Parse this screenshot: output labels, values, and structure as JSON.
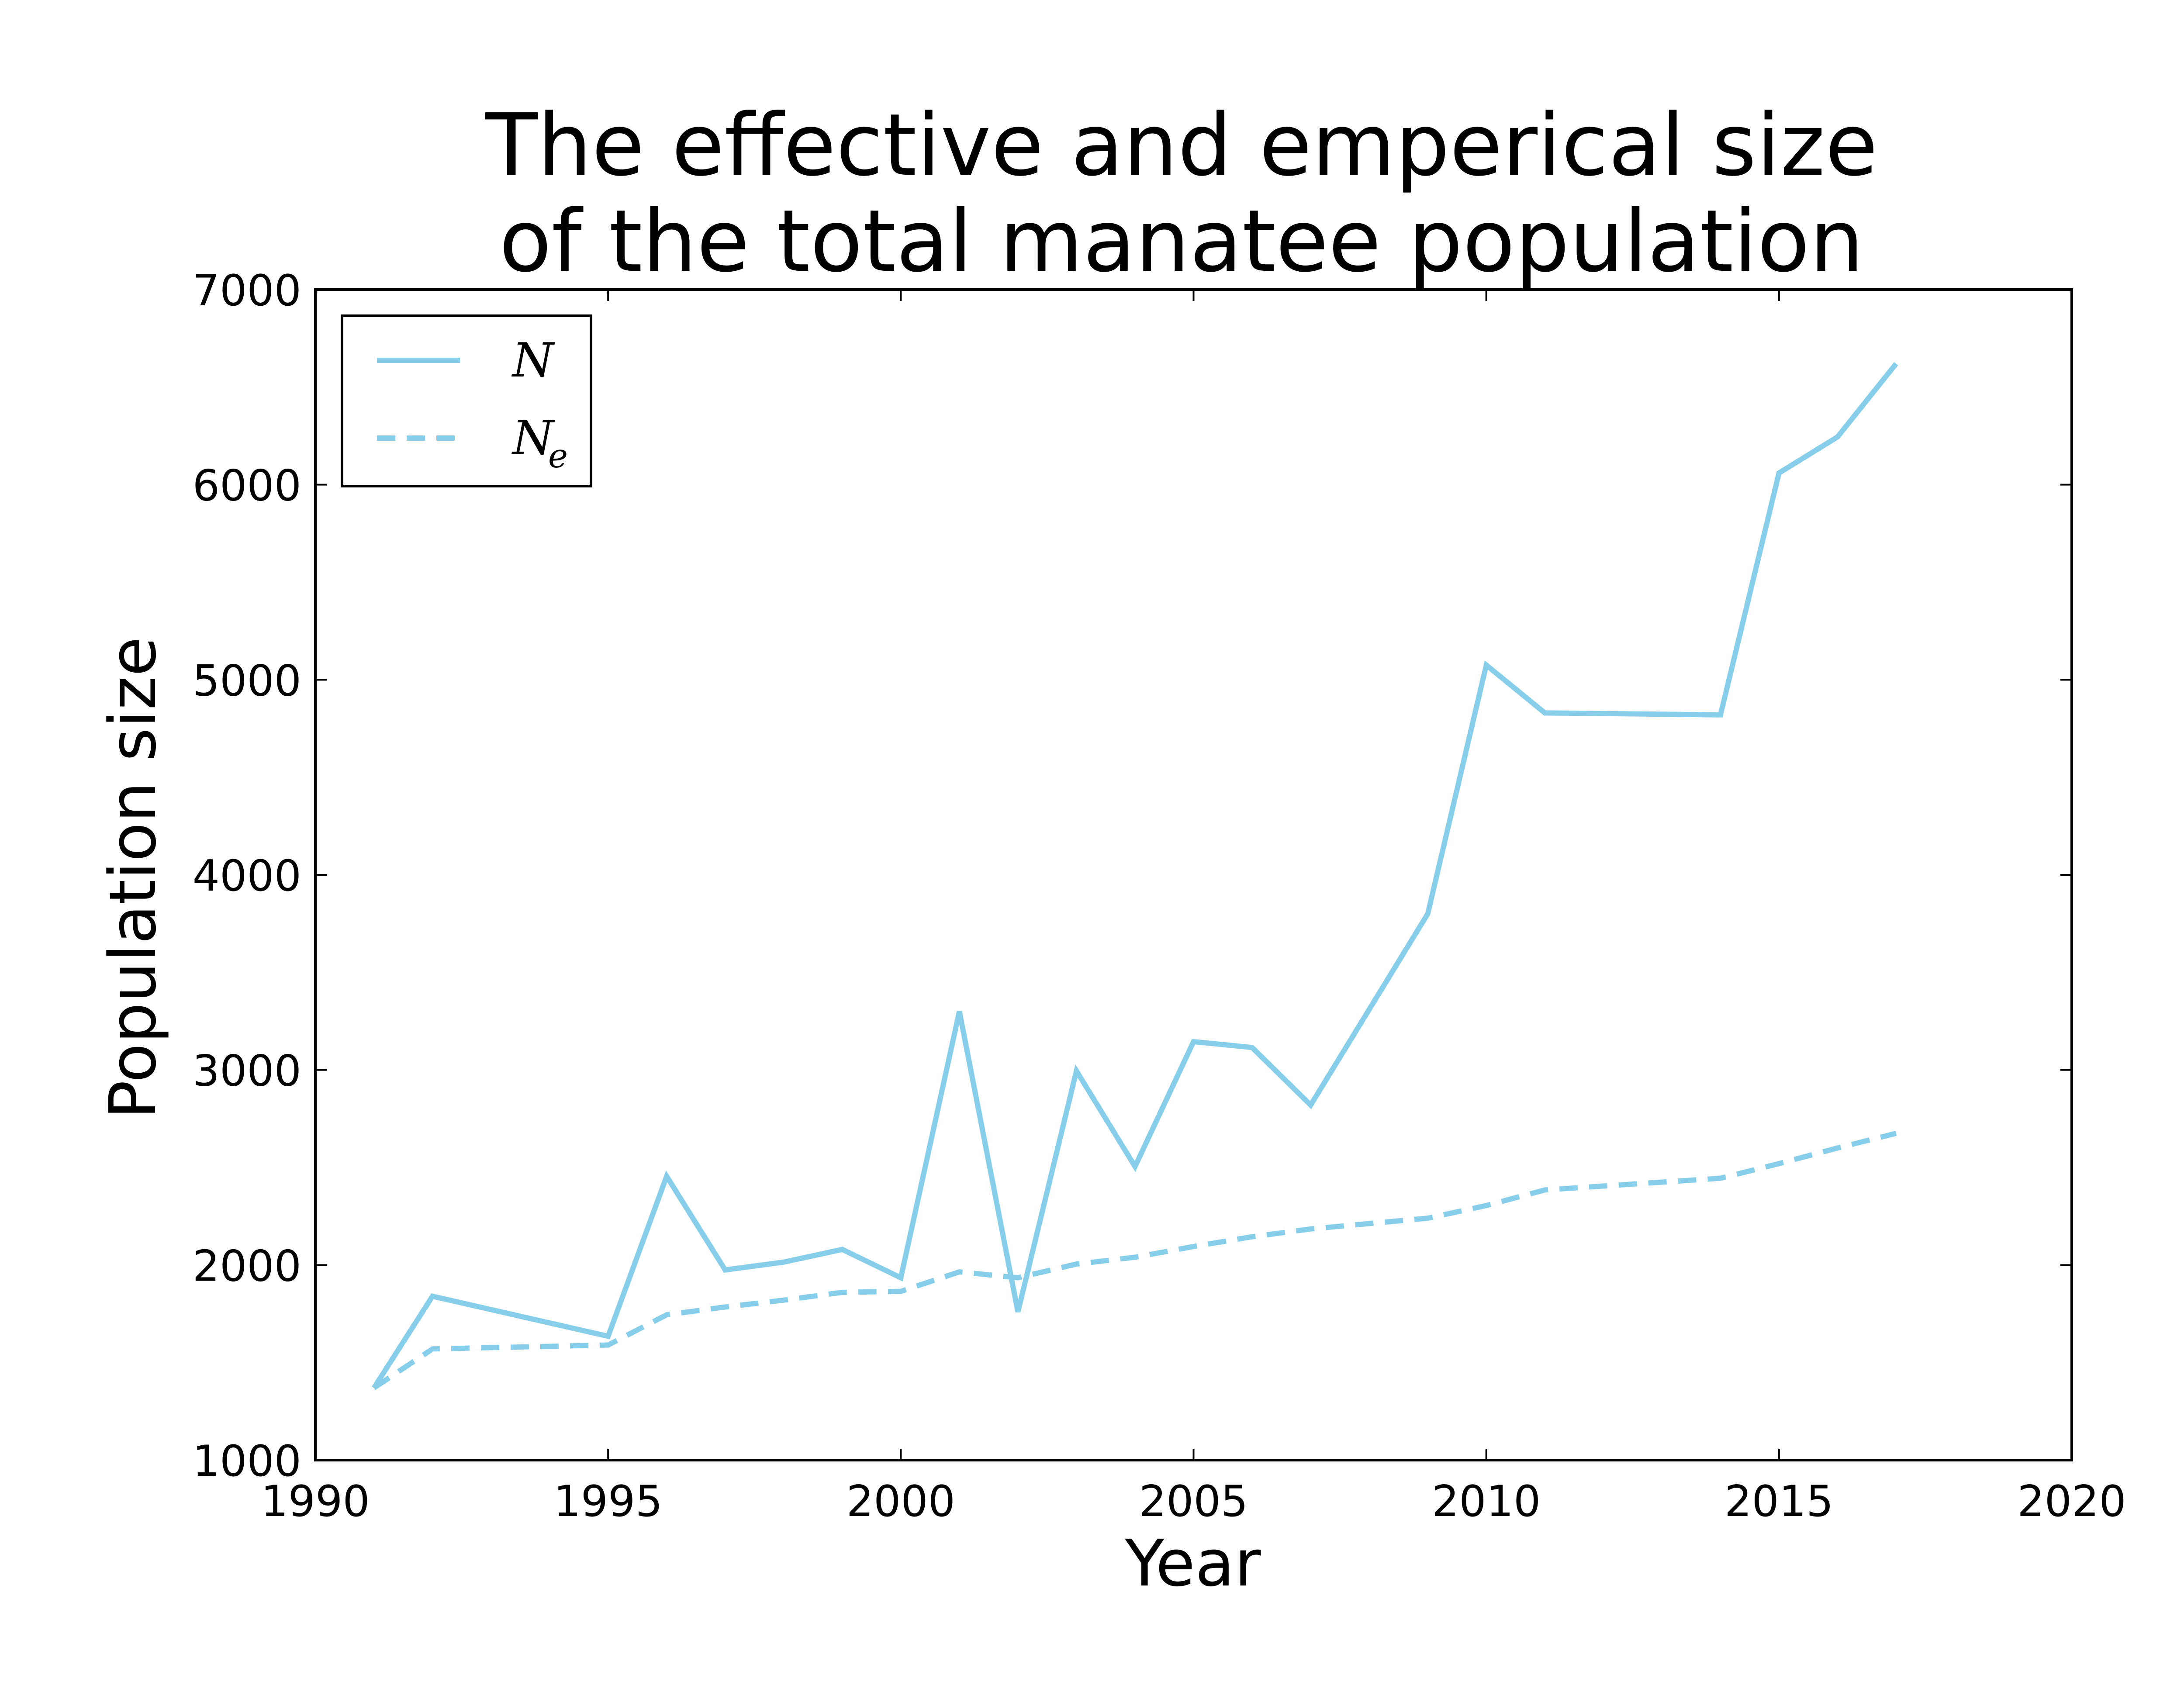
{
  "chart_data": {
    "type": "line",
    "title_lines": [
      "The effective and emperical size",
      "of the total manatee population"
    ],
    "xlabel": "Year",
    "ylabel": "Population size",
    "xlim": [
      1990,
      2020
    ],
    "ylim": [
      1000,
      7000
    ],
    "xticks": [
      1990,
      1995,
      2000,
      2005,
      2010,
      2015,
      2020
    ],
    "yticks": [
      1000,
      2000,
      3000,
      4000,
      5000,
      6000,
      7000
    ],
    "grid": false,
    "legend_position": "top-left",
    "series": [
      {
        "name": "N",
        "legend_main": "N",
        "legend_sub": "",
        "style": "solid",
        "color": "#87ceeb",
        "x": [
          1991,
          1992,
          1995,
          1996,
          1997,
          1998,
          1999,
          2000,
          2001,
          2002,
          2003,
          2004,
          2005,
          2006,
          2007,
          2009,
          2010,
          2011,
          2014,
          2015,
          2016,
          2017
        ],
        "values": [
          1370,
          1840,
          1635,
          2455,
          1975,
          2015,
          2080,
          1935,
          3300,
          1760,
          2995,
          2505,
          3145,
          3115,
          2820,
          3800,
          5075,
          4830,
          4820,
          6060,
          6245,
          6620
        ]
      },
      {
        "name": "N_e",
        "legend_main": "N",
        "legend_sub": "e",
        "style": "dashed",
        "color": "#87ceeb",
        "x": [
          1991,
          1992,
          1995,
          1996,
          1997,
          1998,
          1999,
          2000,
          2001,
          2002,
          2003,
          2004,
          2005,
          2006,
          2007,
          2009,
          2010,
          2011,
          2014,
          2015,
          2016,
          2017
        ],
        "values": [
          1370,
          1570,
          1590,
          1745,
          1785,
          1820,
          1860,
          1865,
          1965,
          1935,
          2005,
          2040,
          2095,
          2145,
          2185,
          2240,
          2305,
          2385,
          2445,
          2520,
          2600,
          2675
        ]
      }
    ]
  }
}
